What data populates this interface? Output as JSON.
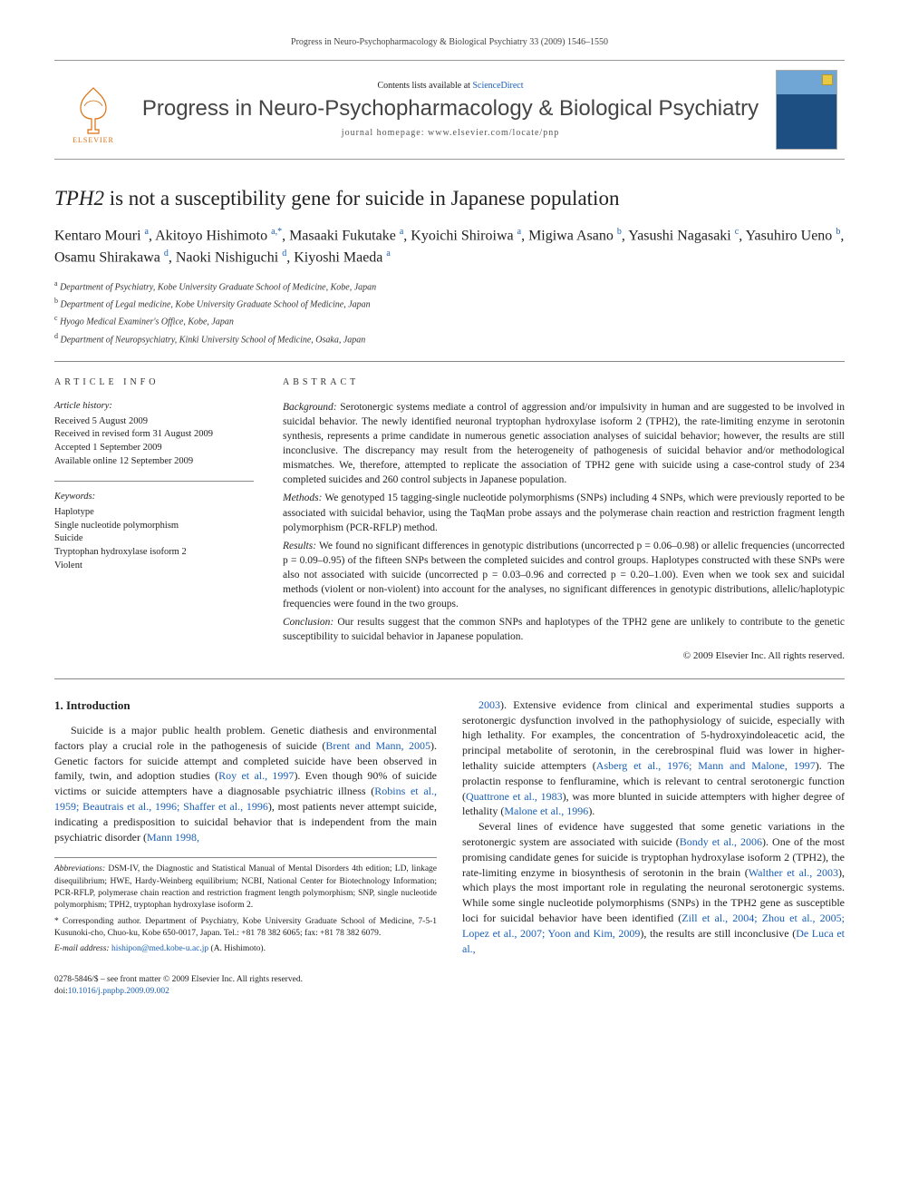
{
  "citation": "Progress in Neuro-Psychopharmacology & Biological Psychiatry 33 (2009) 1546–1550",
  "masthead": {
    "contents_prefix": "Contents lists available at ",
    "contents_link": "ScienceDirect",
    "journal": "Progress in Neuro-Psychopharmacology & Biological Psychiatry",
    "homepage_label": "journal homepage: ",
    "homepage_url": "www.elsevier.com/locate/pnp",
    "publisher_name": "ELSEVIER"
  },
  "title_prefix_italic": "TPH2",
  "title_rest": " is not a susceptibility gene for suicide in Japanese population",
  "authors": [
    {
      "name": "Kentaro Mouri",
      "aff": "a"
    },
    {
      "name": "Akitoyo Hishimoto",
      "aff": "a",
      "corr": true
    },
    {
      "name": "Masaaki Fukutake",
      "aff": "a"
    },
    {
      "name": "Kyoichi Shiroiwa",
      "aff": "a"
    },
    {
      "name": "Migiwa Asano",
      "aff": "b"
    },
    {
      "name": "Yasushi Nagasaki",
      "aff": "c"
    },
    {
      "name": "Yasuhiro Ueno",
      "aff": "b"
    },
    {
      "name": "Osamu Shirakawa",
      "aff": "d"
    },
    {
      "name": "Naoki Nishiguchi",
      "aff": "d"
    },
    {
      "name": "Kiyoshi Maeda",
      "aff": "a"
    }
  ],
  "affiliations": {
    "a": "Department of Psychiatry, Kobe University Graduate School of Medicine, Kobe, Japan",
    "b": "Department of Legal medicine, Kobe University Graduate School of Medicine, Japan",
    "c": "Hyogo Medical Examiner's Office, Kobe, Japan",
    "d": "Department of Neuropsychiatry, Kinki University School of Medicine, Osaka, Japan"
  },
  "article_info": {
    "label": "ARTICLE INFO",
    "history_hd": "Article history:",
    "history": [
      "Received 5 August 2009",
      "Received in revised form 31 August 2009",
      "Accepted 1 September 2009",
      "Available online 12 September 2009"
    ],
    "keywords_hd": "Keywords:",
    "keywords": [
      "Haplotype",
      "Single nucleotide polymorphism",
      "Suicide",
      "Tryptophan hydroxylase isoform 2",
      "Violent"
    ]
  },
  "abstract": {
    "label": "ABSTRACT",
    "background_hd": "Background:",
    "background": "Serotonergic systems mediate a control of aggression and/or impulsivity in human and are suggested to be involved in suicidal behavior. The newly identified neuronal tryptophan hydroxylase isoform 2 (TPH2), the rate-limiting enzyme in serotonin synthesis, represents a prime candidate in numerous genetic association analyses of suicidal behavior; however, the results are still inconclusive. The discrepancy may result from the heterogeneity of pathogenesis of suicidal behavior and/or methodological mismatches. We, therefore, attempted to replicate the association of TPH2 gene with suicide using a case-control study of 234 completed suicides and 260 control subjects in Japanese population.",
    "methods_hd": "Methods:",
    "methods": "We genotyped 15 tagging-single nucleotide polymorphisms (SNPs) including 4 SNPs, which were previously reported to be associated with suicidal behavior, using the TaqMan probe assays and the polymerase chain reaction and restriction fragment length polymorphism (PCR-RFLP) method.",
    "results_hd": "Results:",
    "results": "We found no significant differences in genotypic distributions (uncorrected p = 0.06–0.98) or allelic frequencies (uncorrected p = 0.09–0.95) of the fifteen SNPs between the completed suicides and control groups. Haplotypes constructed with these SNPs were also not associated with suicide (uncorrected p = 0.03–0.96 and corrected p = 0.20–1.00). Even when we took sex and suicidal methods (violent or non-violent) into account for the analyses, no significant differences in genotypic distributions, allelic/haplotypic frequencies were found in the two groups.",
    "conclusion_hd": "Conclusion:",
    "conclusion": "Our results suggest that the common SNPs and haplotypes of the TPH2 gene are unlikely to contribute to the genetic susceptibility to suicidal behavior in Japanese population.",
    "copyright": "© 2009 Elsevier Inc. All rights reserved."
  },
  "intro": {
    "heading": "1. Introduction",
    "p1a": "Suicide is a major public health problem. Genetic diathesis and environmental factors play a crucial role in the pathogenesis of suicide (",
    "p1_ref1": "Brent and Mann, 2005",
    "p1b": "). Genetic factors for suicide attempt and completed suicide have been observed in family, twin, and adoption studies (",
    "p1_ref2": "Roy et al., 1997",
    "p1c": "). Even though 90% of suicide victims or suicide attempters have a diagnosable psychiatric illness (",
    "p1_ref3": "Robins et al., 1959; Beautrais et al., 1996; Shaffer et al., 1996",
    "p1d": "), most patients never attempt suicide, indicating a predisposition to suicidal behavior that is independent from the main psychiatric disorder (",
    "p1_ref4": "Mann 1998,",
    "p2_ref1": "2003",
    "p2a": "). Extensive evidence from clinical and experimental studies supports a serotonergic dysfunction involved in the pathophysiology of suicide, especially with high lethality. For examples, the concentration of 5-hydroxyindoleacetic acid, the principal metabolite of serotonin, in the cerebrospinal fluid was lower in higher-lethality suicide attempters (",
    "p2_ref2": "Asberg et al., 1976; Mann and Malone, 1997",
    "p2b": "). The prolactin response to fenfluramine, which is relevant to central serotonergic function (",
    "p2_ref3": "Quattrone et al., 1983",
    "p2c": "), was more blunted in suicide attempters with higher degree of lethality (",
    "p2_ref4": "Malone et al., 1996",
    "p2d": ").",
    "p3a": "Several lines of evidence have suggested that some genetic variations in the serotonergic system are associated with suicide (",
    "p3_ref1": "Bondy et al., 2006",
    "p3b": "). One of the most promising candidate genes for suicide is tryptophan hydroxylase isoform 2 (TPH2), the rate-limiting enzyme in biosynthesis of serotonin in the brain (",
    "p3_ref2": "Walther et al., 2003",
    "p3c": "), which plays the most important role in regulating the neuronal serotonergic systems. While some single nucleotide polymorphisms (SNPs) in the TPH2 gene as susceptible loci for suicidal behavior have been identified (",
    "p3_ref3": "Zill et al., 2004; Zhou et al., 2005; Lopez et al., 2007; Yoon and Kim, 2009",
    "p3d": "), the results are still inconclusive (",
    "p3_ref4": "De Luca et al.,"
  },
  "footnotes": {
    "abbrev_hd": "Abbreviations:",
    "abbrev": "DSM-IV, the Diagnostic and Statistical Manual of Mental Disorders 4th edition; LD, linkage disequilibrium; HWE, Hardy-Weinberg equilibrium; NCBI, National Center for Biotechnology Information; PCR-RFLP, polymerase chain reaction and restriction fragment length polymorphism; SNP, single nucleotide polymorphism; TPH2, tryptophan hydroxylase isoform 2.",
    "corr": "Corresponding author. Department of Psychiatry, Kobe University Graduate School of Medicine, 7-5-1 Kusunoki-cho, Chuo-ku, Kobe 650-0017, Japan. Tel.: +81 78 382 6065; fax: +81 78 382 6079.",
    "email_hd": "E-mail address:",
    "email": "hishipon@med.kobe-u.ac.jp",
    "email_who": "(A. Hishimoto)."
  },
  "footer": {
    "issn": "0278-5846/$ – see front matter © 2009 Elsevier Inc. All rights reserved.",
    "doi_label": "doi:",
    "doi": "10.1016/j.pnpbp.2009.09.002"
  },
  "colors": {
    "link": "#1a5fb4",
    "elsevier_orange": "#d96f10",
    "rule": "#888888"
  }
}
